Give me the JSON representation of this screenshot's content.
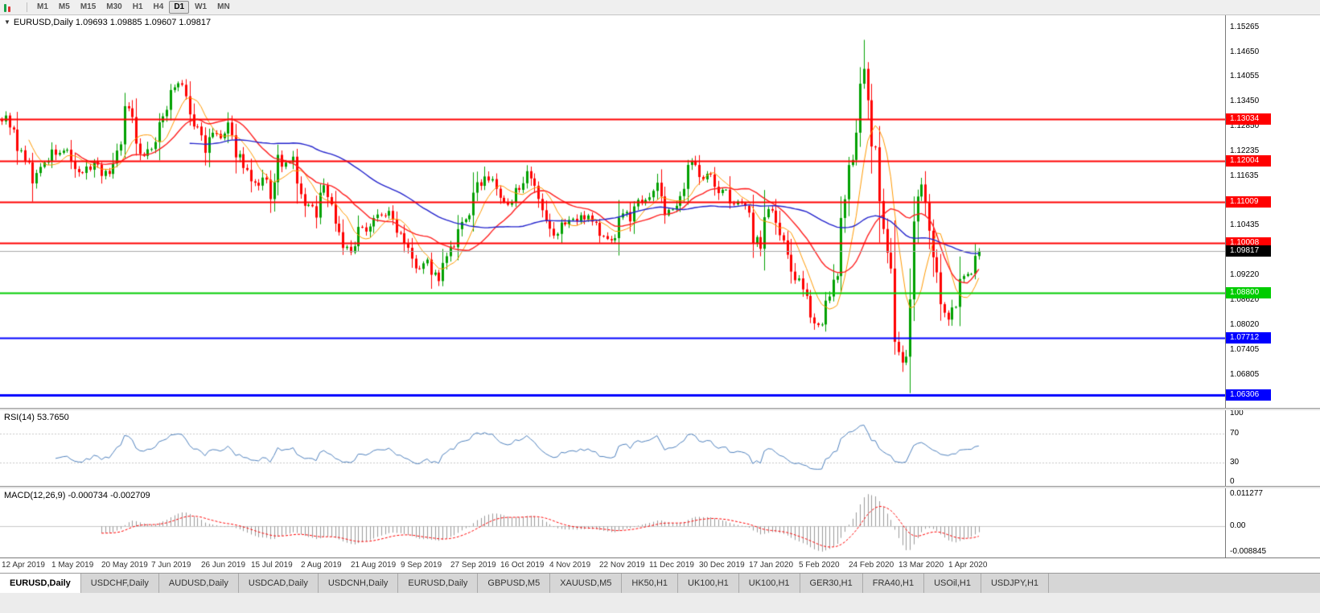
{
  "toolbar": {
    "timeframes": [
      {
        "label": "M1",
        "active": false
      },
      {
        "label": "M5",
        "active": false
      },
      {
        "label": "M15",
        "active": false
      },
      {
        "label": "M30",
        "active": false
      },
      {
        "label": "H1",
        "active": false
      },
      {
        "label": "H4",
        "active": false
      },
      {
        "label": "D1",
        "active": true
      },
      {
        "label": "W1",
        "active": false
      },
      {
        "label": "MN",
        "active": false
      }
    ]
  },
  "chart": {
    "title_text": "EURUSD,Daily 1.09693 1.09885 1.09607 1.09817"
  },
  "chart_data": {
    "type": "candlestick",
    "symbol": "EURUSD",
    "timeframe": "Daily",
    "current": {
      "open": 1.09693,
      "high": 1.09885,
      "low": 1.09607,
      "close": 1.09817
    },
    "current_badge": "1.09817",
    "current_line_color": "#a8a8a8",
    "up_color": "#00A000",
    "down_color": "#FF0000",
    "seed": 9,
    "candles_count": 256,
    "plot_fraction": 0.8,
    "x_label_step": 13,
    "extremes": {
      "high": 1.14953,
      "low": 1.06359
    },
    "price_axis": {
      "min": 1.06,
      "max": 1.1555,
      "ticks": [
        "1.15265",
        "1.14650",
        "1.14055",
        "1.13450",
        "1.12850",
        "1.12235",
        "1.11635",
        "1.11035",
        "1.10435",
        "1.09820",
        "1.09220",
        "1.08620",
        "1.08020",
        "1.07405",
        "1.06805"
      ]
    },
    "x_axis_labels": [
      "12 Apr 2019",
      "1 May 2019",
      "20 May 2019",
      "7 Jun 2019",
      "26 Jun 2019",
      "15 Jul 2019",
      "2 Aug 2019",
      "21 Aug 2019",
      "9 Sep 2019",
      "27 Sep 2019",
      "16 Oct 2019",
      "4 Nov 2019",
      "22 Nov 2019",
      "11 Dec 2019",
      "30 Dec 2019",
      "17 Jan 2020",
      "5 Feb 2020",
      "24 Feb 2020",
      "13 Mar 2020",
      "1 Apr 2020"
    ],
    "hlines": [
      {
        "label": "1.13034",
        "price": 1.13034,
        "color": "#ff0000",
        "width": 2
      },
      {
        "label": "1.12004",
        "price": 1.12004,
        "color": "#ff0000",
        "width": 2
      },
      {
        "label": "1.11009",
        "price": 1.11009,
        "color": "#ff0000",
        "width": 2
      },
      {
        "label": "1.10008",
        "price": 1.10008,
        "color": "#ff0000",
        "width": 2
      },
      {
        "label": "1.08800",
        "price": 1.088,
        "color": "#00cc00",
        "width": 2
      },
      {
        "label": "1.07712",
        "price": 1.07712,
        "color": "#0000ff",
        "width": 2
      },
      {
        "label": "1.06306",
        "price": 1.06306,
        "color": "#0000ff",
        "width": 3
      }
    ],
    "moving_averages": [
      {
        "period": 8,
        "color": "#ff9900",
        "width": 1
      },
      {
        "period": 20,
        "color": "#ff2020",
        "width": 1.4
      },
      {
        "period": 50,
        "color": "#2323cc",
        "width": 1.4
      }
    ],
    "close_path": [
      1.1302,
      1.1308,
      1.1221,
      1.1225,
      1.1151,
      1.1174,
      1.12,
      1.1221,
      1.1216,
      1.1232,
      1.1159,
      1.1172,
      1.1185,
      1.1202,
      1.1167,
      1.1178,
      1.1241,
      1.133,
      1.1312,
      1.121,
      1.1226,
      1.1243,
      1.1301,
      1.137,
      1.1392,
      1.1373,
      1.1285,
      1.1281,
      1.1226,
      1.127,
      1.1254,
      1.1274,
      1.122,
      1.1207,
      1.1151,
      1.1128,
      1.1156,
      1.1108,
      1.1202,
      1.1184,
      1.1205,
      1.11,
      1.109,
      1.1078,
      1.1145,
      1.1106,
      1.104,
      1.099,
      1.097,
      1.1028,
      1.1039,
      1.106,
      1.1073,
      1.107,
      1.1043,
      1.1017,
      1.099,
      1.094,
      1.0961,
      1.093,
      1.09,
      1.0979,
      1.0989,
      1.104,
      1.1073,
      1.1125,
      1.117,
      1.1152,
      1.113,
      1.108,
      1.1102,
      1.115,
      1.1166,
      1.1125,
      1.1071,
      1.103,
      1.1018,
      1.105,
      1.1062,
      1.1051,
      1.1073,
      1.106,
      1.1021,
      1.1008,
      1.1018,
      1.108,
      1.106,
      1.11,
      1.111,
      1.1121,
      1.114,
      1.1078,
      1.1088,
      1.1087,
      1.1175,
      1.1212,
      1.116,
      1.117,
      1.1122,
      1.113,
      1.1104,
      1.109,
      1.1095,
      1.1024,
      1.1003,
      1.1093,
      1.106,
      1.1,
      1.0946,
      1.0912,
      1.0869,
      1.0831,
      1.0795,
      1.0846,
      1.088,
      1.1026,
      1.1133,
      1.1285,
      1.145,
      1.128,
      1.1184,
      1.1,
      1.0918,
      1.0692,
      1.0727,
      1.103,
      1.1141,
      1.1031,
      1.0961,
      1.0858,
      1.0793,
      1.0893,
      1.093,
      1.0914,
      1.09817
    ],
    "rsi": {
      "title": "RSI(14) 53.7650",
      "period": 14,
      "current": 53.765,
      "color": "#4f81bd",
      "levels": [
        70,
        30
      ],
      "axis_ticks": [
        "100",
        "70",
        "30",
        "0"
      ]
    },
    "macd": {
      "title": "MACD(12,26,9) -0.000734 -0.002709",
      "fast": 12,
      "slow": 26,
      "signal": 9,
      "macd_current": -0.000734,
      "signal_current": -0.002709,
      "hist_color": "#9a9a9a",
      "signal_color": "#ff0000",
      "axis_ticks": {
        "top": "0.011277",
        "zero": "0.00",
        "bottom": "-0.008845"
      }
    }
  },
  "tabs": {
    "active_index": 0,
    "items": [
      "EURUSD,Daily",
      "USDCHF,Daily",
      "AUDUSD,Daily",
      "USDCAD,Daily",
      "USDCNH,Daily",
      "EURUSD,Daily",
      "GBPUSD,M5",
      "XAUUSD,M5",
      "HK50,H1",
      "UK100,H1",
      "UK100,H1",
      "GER30,H1",
      "FRA40,H1",
      "USOil,H1",
      "USDJPY,H1"
    ]
  }
}
